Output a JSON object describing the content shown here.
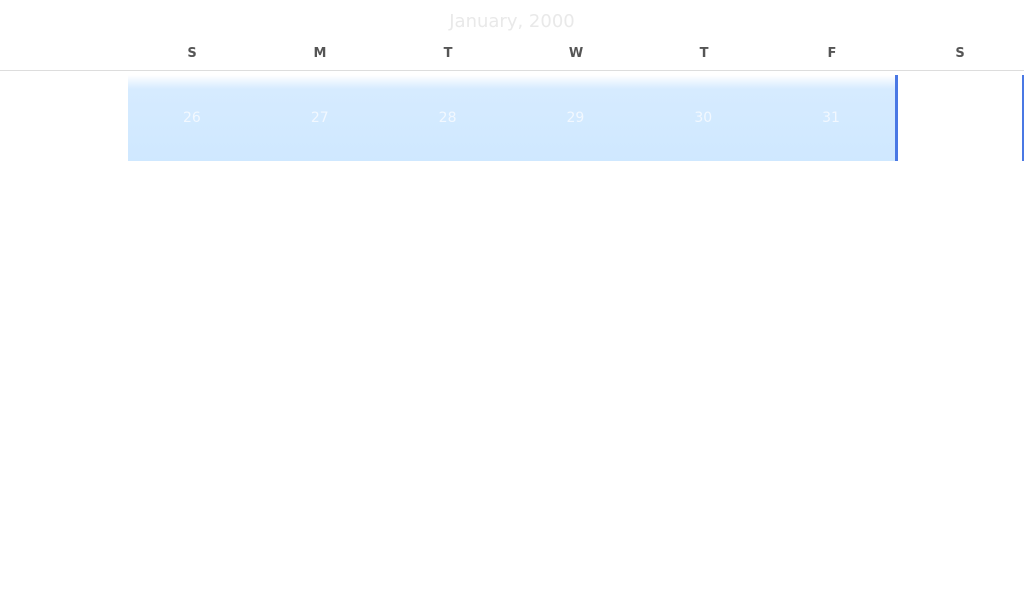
{
  "calendar": {
    "month_title": "January, 2000",
    "weekdays": [
      "S",
      "M",
      "T",
      "W",
      "T",
      "F",
      "S"
    ],
    "week": {
      "days": [
        "26",
        "27",
        "28",
        "29",
        "30",
        "31",
        ""
      ]
    }
  },
  "colors": {
    "selection_fill": "#cfe8ff",
    "selection_edge": "#4a78e4",
    "header_text": "#555555",
    "day_text": "#f2f8ff",
    "title_text": "#e9e9e9",
    "divider": "#dddddd"
  }
}
